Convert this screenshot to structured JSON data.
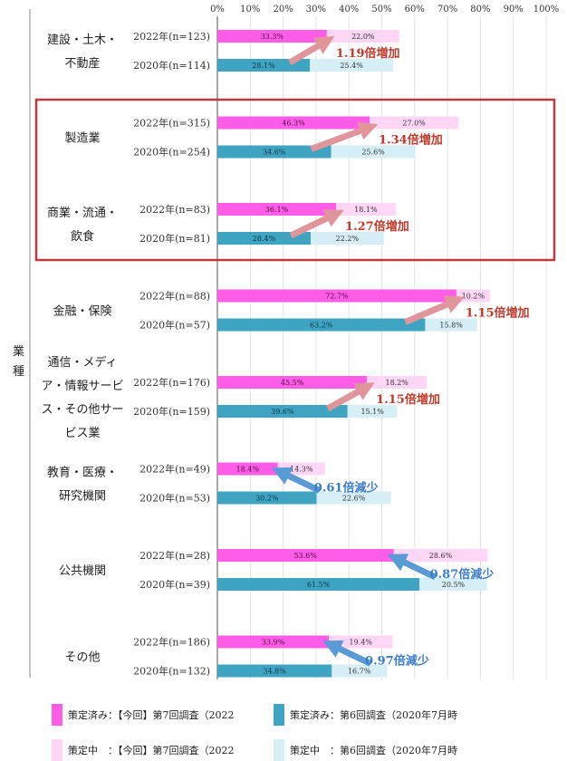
{
  "chart_data": {
    "type": "bar",
    "orientation": "horizontal",
    "stacked": true,
    "side_label": "業種",
    "x_ticks": [
      "0%",
      "10%",
      "20%",
      "30%",
      "40%",
      "50%",
      "60%",
      "70%",
      "80%",
      "90%",
      "100%"
    ],
    "xlim": [
      0,
      100
    ],
    "grid": true,
    "colors": {
      "done_2022": "#ff5ce8",
      "mid_2022": "#ffd6f6",
      "done_2020": "#3ea4c2",
      "mid_2020": "#d6eef6",
      "increase_text": "#c0392b",
      "increase_arrow": "#e0959a",
      "decrease_text": "#3a7cc7",
      "decrease_arrow": "#5b9bd5",
      "highlight_box": "#c0393b"
    },
    "groups": [
      {
        "category_lines": [
          "建設・土木・",
          "不動産"
        ],
        "rows": [
          {
            "label": "2022年(n=123)",
            "done": 33.3,
            "mid": 22.0,
            "done_text": "33.3%",
            "mid_text": "22.0%",
            "year": "2022"
          },
          {
            "label": "2020年(n=114)",
            "done": 28.1,
            "mid": 25.4,
            "done_text": "28.1%",
            "mid_text": "25.4%",
            "year": "2020"
          }
        ],
        "change": "1.19倍増加",
        "direction": "up"
      },
      {
        "category_lines": [
          "製造業"
        ],
        "rows": [
          {
            "label": "2022年(n=315)",
            "done": 46.3,
            "mid": 27.0,
            "done_text": "46.3%",
            "mid_text": "27.0%",
            "year": "2022"
          },
          {
            "label": "2020年(n=254)",
            "done": 34.6,
            "mid": 25.6,
            "done_text": "34.6%",
            "mid_text": "25.6%",
            "year": "2020"
          }
        ],
        "change": "1.34倍増加",
        "direction": "up"
      },
      {
        "category_lines": [
          "商業・流通・",
          "飲食"
        ],
        "rows": [
          {
            "label": "2022年(n=83)",
            "done": 36.1,
            "mid": 18.1,
            "done_text": "36.1%",
            "mid_text": "18.1%",
            "year": "2022"
          },
          {
            "label": "2020年(n=81)",
            "done": 28.4,
            "mid": 22.2,
            "done_text": "28.4%",
            "mid_text": "22.2%",
            "year": "2020"
          }
        ],
        "change": "1.27倍増加",
        "direction": "up"
      },
      {
        "category_lines": [
          "金融・保険"
        ],
        "rows": [
          {
            "label": "2022年(n=88)",
            "done": 72.7,
            "mid": 10.2,
            "done_text": "72.7%",
            "mid_text": "10.2%",
            "year": "2022"
          },
          {
            "label": "2020年(n=57)",
            "done": 63.2,
            "mid": 15.8,
            "done_text": "63.2%",
            "mid_text": "15.8%",
            "year": "2020"
          }
        ],
        "change": "1.15倍増加",
        "direction": "up"
      },
      {
        "category_lines": [
          "通信・メディ",
          "ア・情報サービ",
          "ス・その他サー",
          "ビス業"
        ],
        "rows": [
          {
            "label": "2022年(n=176)",
            "done": 45.5,
            "mid": 18.2,
            "done_text": "45.5%",
            "mid_text": "18.2%",
            "year": "2022"
          },
          {
            "label": "2020年(n=159)",
            "done": 39.6,
            "mid": 15.1,
            "done_text": "39.6%",
            "mid_text": "15.1%",
            "year": "2020"
          }
        ],
        "change": "1.15倍増加",
        "direction": "up"
      },
      {
        "category_lines": [
          "教育・医療・",
          "研究機関"
        ],
        "rows": [
          {
            "label": "2022年(n=49)",
            "done": 18.4,
            "mid": 14.3,
            "done_text": "18.4%",
            "mid_text": "14.3%",
            "year": "2022"
          },
          {
            "label": "2020年(n=53)",
            "done": 30.2,
            "mid": 22.6,
            "done_text": "30.2%",
            "mid_text": "22.6%",
            "year": "2020"
          }
        ],
        "change": "0.61倍減少",
        "direction": "down"
      },
      {
        "category_lines": [
          "公共機関"
        ],
        "rows": [
          {
            "label": "2022年(n=28)",
            "done": 53.6,
            "mid": 28.6,
            "done_text": "53.6%",
            "mid_text": "28.6%",
            "year": "2022"
          },
          {
            "label": "2020年(n=39)",
            "done": 61.5,
            "mid": 20.5,
            "done_text": "61.5%",
            "mid_text": "20.5%",
            "year": "2020"
          }
        ],
        "change": "0.87倍減少",
        "direction": "down"
      },
      {
        "category_lines": [
          "その他"
        ],
        "rows": [
          {
            "label": "2022年(n=186)",
            "done": 33.9,
            "mid": 19.4,
            "done_text": "33.9%",
            "mid_text": "19.4%",
            "year": "2022"
          },
          {
            "label": "2020年(n=132)",
            "done": 34.8,
            "mid": 16.7,
            "done_text": "34.8%",
            "mid_text": "16.7%",
            "year": "2020"
          }
        ],
        "change": "0.97倍減少",
        "direction": "down"
      }
    ],
    "highlighted_groups": [
      "製造業",
      "商業・流通・飲食"
    ],
    "legend": [
      {
        "label": "策定済み：【今回】第7回調査（2022",
        "color_key": "done_2022"
      },
      {
        "label": "策定済み：第6回調査（2020年7月時",
        "color_key": "done_2020"
      },
      {
        "label": "策定中　：【今回】第7回調査（2022",
        "color_key": "mid_2022"
      },
      {
        "label": "策定中　：第6回調査（2020年7月時",
        "color_key": "mid_2020"
      }
    ]
  }
}
